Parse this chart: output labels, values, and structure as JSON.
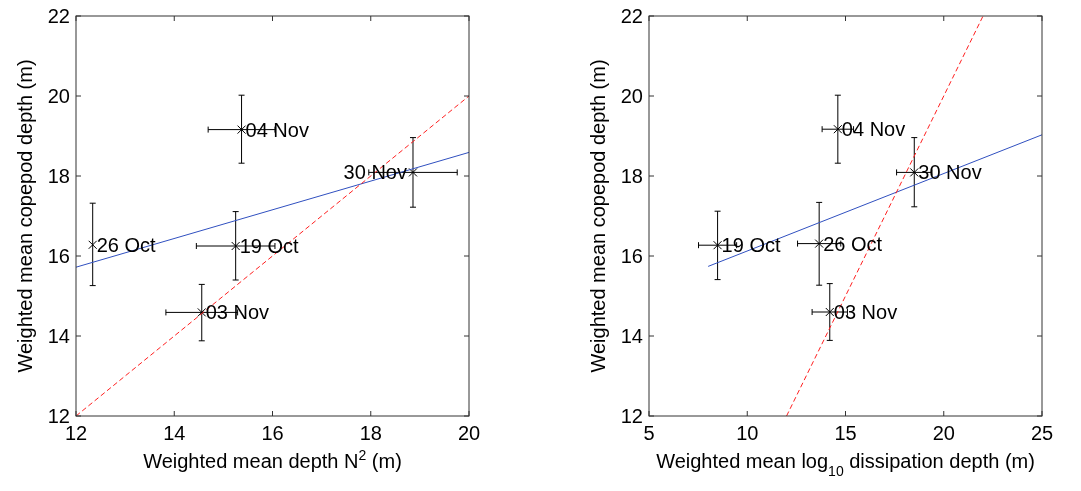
{
  "chart_data": [
    {
      "type": "scatter",
      "xlabel": "Weighted mean depth N$^{2}$ (m)",
      "ylabel": "Weighted mean copepod depth (m)",
      "xlim": [
        12,
        20
      ],
      "xticks": [
        12,
        14,
        16,
        18,
        20
      ],
      "ylim": [
        12,
        22
      ],
      "yticks": [
        12,
        14,
        16,
        18,
        20,
        22
      ],
      "grid": false,
      "series": [
        {
          "color": "#000000",
          "marker": "cross",
          "x": [
            12.34,
            15.25,
            14.56,
            15.37,
            18.86
          ],
          "values": [
            16.28,
            16.25,
            14.59,
            19.16,
            18.09
          ],
          "errors": [
            [
              15.26,
              17.32
            ],
            [
              15.4,
              17.11
            ],
            [
              13.88,
              15.29
            ],
            [
              18.32,
              20.02
            ],
            [
              17.22,
              18.96
            ]
          ],
          "xerrors": [
            null,
            0.8,
            0.73,
            0.68,
            0.9
          ]
        },
        {
          "type": "line",
          "color": "#3050c0",
          "line_style": "solid",
          "x": [
            12,
            20
          ],
          "values": [
            15.72,
            18.59
          ]
        },
        {
          "type": "line",
          "color": "#ff2020",
          "line_style": "dashed",
          "x": [
            12,
            20
          ],
          "values": [
            12,
            20
          ]
        }
      ],
      "annotations": [
        {
          "text": "26 Oct",
          "x": 12.34,
          "y": 16.28
        },
        {
          "text": "19 Oct",
          "x": 15.25,
          "y": 16.25
        },
        {
          "text": "03 Nov",
          "x": 14.56,
          "y": 14.59
        },
        {
          "text": "04 Nov",
          "x": 15.37,
          "y": 19.16
        },
        {
          "text": "30 Nov",
          "x": 18.86,
          "y": 18.09
        }
      ]
    },
    {
      "type": "scatter",
      "xlabel": "Weighted mean log$_{10}$ dissipation depth (m)",
      "ylabel": "Weighted mean copepod depth (m)",
      "xlim": [
        5,
        25
      ],
      "xticks": [
        5,
        10,
        15,
        20,
        25
      ],
      "ylim": [
        12,
        22
      ],
      "yticks": [
        12,
        14,
        16,
        18,
        20,
        22
      ],
      "grid": false,
      "series": [
        {
          "color": "#000000",
          "marker": "cross",
          "x": [
            8.49,
            13.66,
            14.2,
            14.61,
            18.5
          ],
          "values": [
            16.27,
            16.31,
            14.6,
            19.17,
            18.09
          ],
          "errors": [
            [
              15.41,
              17.12
            ],
            [
              15.27,
              17.34
            ],
            [
              13.89,
              15.31
            ],
            [
              18.32,
              20.02
            ],
            [
              17.23,
              18.96
            ]
          ],
          "xerrors": [
            0.97,
            1.1,
            0.9,
            0.8,
            0.9
          ]
        },
        {
          "type": "line",
          "color": "#3050c0",
          "line_style": "solid",
          "x": [
            8.01,
            25
          ],
          "values": [
            15.74,
            19.03
          ]
        },
        {
          "type": "line",
          "color": "#ff2020",
          "line_style": "dashed",
          "x": [
            12,
            22
          ],
          "values": [
            12,
            22
          ]
        }
      ],
      "annotations": [
        {
          "text": "19 Oct",
          "x": 8.49,
          "y": 16.27
        },
        {
          "text": "26 Oct",
          "x": 13.66,
          "y": 16.31
        },
        {
          "text": "03 Nov",
          "x": 14.2,
          "y": 14.6
        },
        {
          "text": "04 Nov",
          "x": 14.61,
          "y": 19.17
        },
        {
          "text": "30 Nov",
          "x": 18.5,
          "y": 18.09
        }
      ]
    }
  ]
}
